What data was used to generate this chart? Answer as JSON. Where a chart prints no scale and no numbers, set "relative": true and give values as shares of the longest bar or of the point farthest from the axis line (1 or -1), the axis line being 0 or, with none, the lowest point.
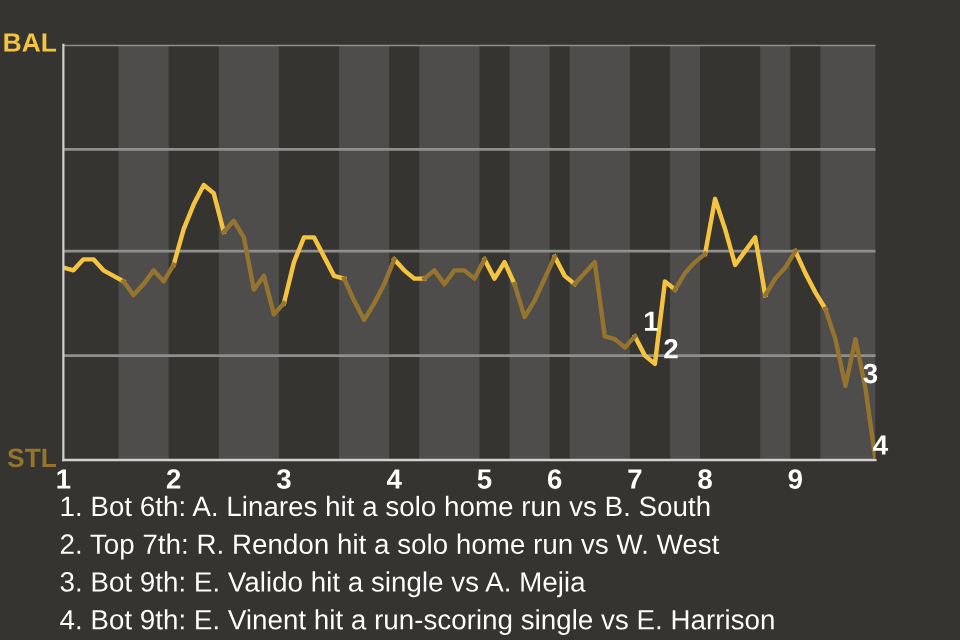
{
  "chart_data": {
    "type": "line",
    "categories": [
      "1",
      null,
      null,
      null,
      null,
      null,
      null,
      null,
      null,
      null,
      null,
      "2",
      null,
      null,
      null,
      null,
      null,
      null,
      null,
      null,
      null,
      null,
      "3",
      null,
      null,
      null,
      null,
      null,
      null,
      null,
      null,
      null,
      null,
      "4",
      null,
      null,
      null,
      null,
      null,
      null,
      null,
      null,
      "5",
      null,
      null,
      null,
      null,
      null,
      null,
      "6",
      null,
      null,
      null,
      null,
      null,
      null,
      null,
      "7",
      null,
      null,
      null,
      null,
      null,
      null,
      "8",
      null,
      null,
      null,
      null,
      null,
      null,
      null,
      null,
      "9",
      null,
      null,
      null,
      null,
      null,
      null,
      null,
      null
    ],
    "relative": true,
    "series": [
      {
        "color": "#f4c340",
        "values": [
          0.7,
          0.69,
          0.73,
          0.73,
          0.69,
          0.67,
          0.65,
          null,
          null,
          null,
          null,
          0.71,
          0.84,
          0.93,
          1,
          0.97,
          0.83,
          null,
          null,
          null,
          null,
          null,
          0.57,
          0.72,
          0.81,
          0.81,
          0.74,
          0.67,
          0.66,
          null,
          null,
          null,
          null,
          0.73,
          0.69,
          0.66,
          0.66,
          null,
          null,
          null,
          null,
          null,
          0.73,
          0.66,
          0.72,
          0.64,
          null,
          null,
          null,
          0.74,
          0.67,
          0.64,
          null,
          null,
          null,
          null,
          null,
          0.45,
          0.38,
          0.35,
          0.65,
          0.62,
          null,
          null,
          0.75,
          0.95,
          0.84,
          0.71,
          0.76,
          0.81,
          0.6,
          null,
          null,
          0.76,
          0.68,
          0.61,
          0.55,
          null,
          null,
          null,
          null,
          null
        ]
      },
      {
        "color": "#94742f",
        "values": [
          null,
          null,
          null,
          null,
          null,
          null,
          0.65,
          0.6,
          0.64,
          0.69,
          0.65,
          0.71,
          null,
          null,
          null,
          null,
          0.83,
          0.87,
          0.81,
          0.62,
          0.67,
          0.53,
          0.57,
          null,
          null,
          null,
          null,
          null,
          0.66,
          0.58,
          0.51,
          0.57,
          0.64,
          0.73,
          null,
          null,
          0.66,
          0.69,
          0.64,
          0.69,
          0.69,
          0.66,
          0.73,
          null,
          null,
          0.64,
          0.52,
          0.58,
          0.66,
          0.74,
          null,
          0.64,
          0.68,
          0.72,
          0.45,
          0.44,
          0.41,
          0.45,
          null,
          null,
          null,
          0.62,
          0.68,
          0.72,
          0.75,
          null,
          null,
          null,
          null,
          null,
          0.6,
          0.66,
          0.7,
          0.76,
          null,
          null,
          0.55,
          0.44,
          0.27,
          0.44,
          0.26,
          0
        ]
      }
    ],
    "ref_lines": [
      {
        "axis": "y",
        "value": 0,
        "label": "STL",
        "color": "#d0d0d0"
      },
      {
        "axis": "y",
        "value": 0.38,
        "label": null,
        "color": "#8f8f8f"
      },
      {
        "axis": "y",
        "value": 0.76,
        "label": null,
        "color": "#8f8f8f"
      },
      {
        "axis": "y",
        "value": 1.13,
        "label": null,
        "color": "#8f8f8f"
      },
      {
        "axis": "y",
        "value": 1.51,
        "label": "BAL",
        "color": "#8f8f8f"
      }
    ],
    "annotations": [
      {
        "text": "1",
        "y": 0.45
      },
      {
        "text": "2",
        "y": 0.35
      },
      {
        "text": "3",
        "y": 0.26
      },
      {
        "text": "4",
        "y": 0
      },
      "1. Bot 6th: A. Linares hit a solo home run vs B. South",
      "2. Top 7th: R. Rendon hit a solo home run vs W. West",
      "3. Bot 9th: E. Valido hit a single vs A. Mejia",
      "4. Bot 9th: E. Vinent hit a run-scoring single vs E. Harrison"
    ],
    "marker": "none",
    "line_style": "solid"
  }
}
